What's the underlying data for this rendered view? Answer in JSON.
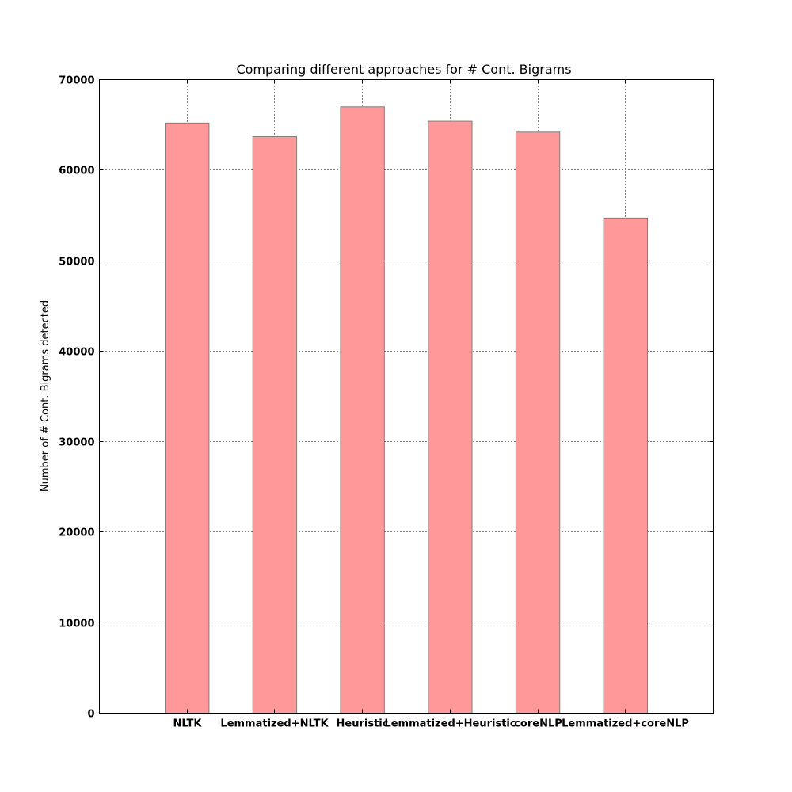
{
  "chart_data": {
    "type": "bar",
    "title": "Comparing different approaches for # Cont. Bigrams",
    "xlabel": "",
    "ylabel": "Number of # Cont. Bigrams detected",
    "categories": [
      "NLTK",
      "Lemmatized+NLTK",
      "Heuristic",
      "Lemmatized+Heuristic",
      "coreNLP",
      "Lemmatized+coreNLP"
    ],
    "values": [
      65200,
      63700,
      67000,
      65400,
      64200,
      54700
    ],
    "ylim": [
      0,
      70000
    ],
    "yticks": [
      0,
      10000,
      20000,
      30000,
      40000,
      50000,
      60000,
      70000
    ],
    "xlim": [
      -1,
      6
    ],
    "bar_width": 0.5,
    "grid": true,
    "bar_color": "#ff9999",
    "bar_edge_color": "#7f7f7f"
  }
}
